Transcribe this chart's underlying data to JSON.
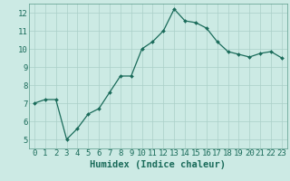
{
  "x": [
    0,
    1,
    2,
    3,
    4,
    5,
    6,
    7,
    8,
    9,
    10,
    11,
    12,
    13,
    14,
    15,
    16,
    17,
    18,
    19,
    20,
    21,
    22,
    23
  ],
  "y": [
    7.0,
    7.2,
    7.2,
    5.0,
    5.6,
    6.4,
    6.7,
    7.6,
    8.5,
    8.5,
    10.0,
    10.4,
    11.0,
    12.2,
    11.55,
    11.45,
    11.15,
    10.4,
    9.85,
    9.7,
    9.55,
    9.75,
    9.85,
    9.5
  ],
  "line_color": "#1a6b5a",
  "marker": "D",
  "marker_size": 2.0,
  "bg_color": "#cceae4",
  "grid_color": "#aacfc8",
  "xlabel": "Humidex (Indice chaleur)",
  "xlim": [
    -0.5,
    23.5
  ],
  "ylim": [
    4.5,
    12.5
  ],
  "yticks": [
    5,
    6,
    7,
    8,
    9,
    10,
    11,
    12
  ],
  "xticks": [
    0,
    1,
    2,
    3,
    4,
    5,
    6,
    7,
    8,
    9,
    10,
    11,
    12,
    13,
    14,
    15,
    16,
    17,
    18,
    19,
    20,
    21,
    22,
    23
  ],
  "tick_color": "#1a6b5a",
  "tick_fontsize": 6.5,
  "xlabel_fontsize": 7.5,
  "axis_color": "#5a9a8a",
  "linewidth": 0.9
}
